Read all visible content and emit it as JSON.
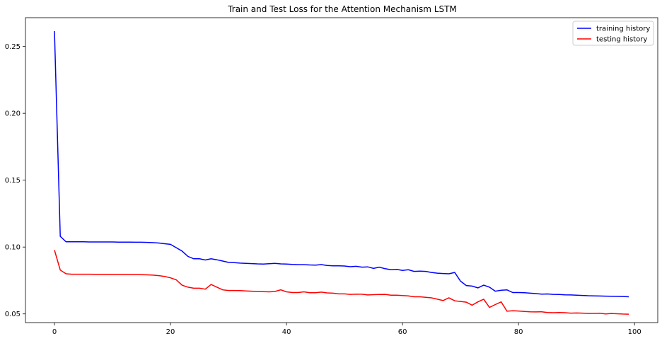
{
  "chart_data": {
    "type": "line",
    "title": "Train and Test Loss for the Attention Mechanism LSTM",
    "xlabel": "",
    "ylabel": "",
    "xlim": [
      -5,
      104
    ],
    "ylim": [
      0.0435,
      0.2715
    ],
    "xticks": [
      0,
      20,
      40,
      60,
      80,
      100
    ],
    "yticks": [
      0.05,
      0.1,
      0.15,
      0.2,
      0.25
    ],
    "ytick_labels": [
      "0.05",
      "0.10",
      "0.15",
      "0.20",
      "0.25"
    ],
    "xtick_labels": [
      "0",
      "20",
      "40",
      "60",
      "80",
      "100"
    ],
    "grid": false,
    "legend_position": "top-right",
    "series": [
      {
        "name": "training history",
        "color": "#0000ff",
        "values": [
          0.2615,
          0.108,
          0.1039,
          0.1039,
          0.1039,
          0.1039,
          0.1038,
          0.1038,
          0.1038,
          0.1038,
          0.1038,
          0.1037,
          0.1037,
          0.1037,
          0.1036,
          0.1036,
          0.1035,
          0.1033,
          0.103,
          0.1025,
          0.102,
          0.0995,
          0.097,
          0.093,
          0.0912,
          0.0912,
          0.0903,
          0.0912,
          0.0905,
          0.0895,
          0.0885,
          0.0883,
          0.088,
          0.0878,
          0.0876,
          0.0874,
          0.0873,
          0.0875,
          0.0878,
          0.0874,
          0.0873,
          0.087,
          0.0868,
          0.0868,
          0.0866,
          0.0865,
          0.0869,
          0.0862,
          0.086,
          0.0859,
          0.0858,
          0.0853,
          0.0856,
          0.085,
          0.0852,
          0.084,
          0.085,
          0.0838,
          0.083,
          0.0833,
          0.0825,
          0.083,
          0.0818,
          0.082,
          0.0818,
          0.081,
          0.0805,
          0.0802,
          0.08,
          0.081,
          0.0745,
          0.0712,
          0.0708,
          0.0695,
          0.0715,
          0.07,
          0.067,
          0.0677,
          0.068,
          0.066,
          0.066,
          0.0658,
          0.0655,
          0.0652,
          0.0648,
          0.0649,
          0.0646,
          0.0645,
          0.0643,
          0.0642,
          0.064,
          0.0638,
          0.0636,
          0.0635,
          0.0634,
          0.0633,
          0.0632,
          0.0631,
          0.063,
          0.0628
        ]
      },
      {
        "name": "testing history",
        "color": "#ff0000",
        "values": [
          0.0977,
          0.0828,
          0.08,
          0.0797,
          0.0797,
          0.0797,
          0.0797,
          0.0796,
          0.0796,
          0.0796,
          0.0795,
          0.0795,
          0.0795,
          0.0794,
          0.0794,
          0.0793,
          0.0792,
          0.079,
          0.0786,
          0.078,
          0.077,
          0.0755,
          0.0715,
          0.07,
          0.0692,
          0.0692,
          0.0685,
          0.072,
          0.07,
          0.068,
          0.0675,
          0.0675,
          0.0674,
          0.0672,
          0.067,
          0.0668,
          0.0666,
          0.0665,
          0.0668,
          0.068,
          0.0665,
          0.066,
          0.066,
          0.0665,
          0.0658,
          0.0658,
          0.0663,
          0.0657,
          0.0655,
          0.065,
          0.065,
          0.0646,
          0.0648,
          0.0647,
          0.0642,
          0.0644,
          0.0645,
          0.0646,
          0.064,
          0.064,
          0.0637,
          0.0635,
          0.0628,
          0.0628,
          0.0624,
          0.062,
          0.061,
          0.06,
          0.062,
          0.0598,
          0.0593,
          0.0588,
          0.0565,
          0.059,
          0.061,
          0.0548,
          0.057,
          0.059,
          0.052,
          0.0524,
          0.0522,
          0.0518,
          0.0516,
          0.0515,
          0.0516,
          0.051,
          0.0509,
          0.051,
          0.0509,
          0.0506,
          0.0507,
          0.0506,
          0.0504,
          0.0504,
          0.0505,
          0.05,
          0.0503,
          0.0501,
          0.0499,
          0.0498
        ]
      }
    ]
  }
}
